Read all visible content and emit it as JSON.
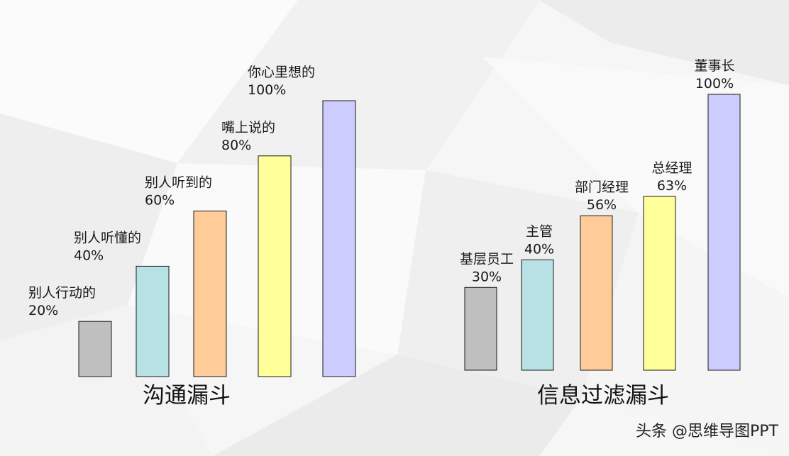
{
  "chart_data": [
    {
      "type": "bar",
      "title": "沟通漏斗",
      "categories": [
        "别人行动的",
        "别人听懂的",
        "别人听到的",
        "嘴上说的",
        "你心里想的"
      ],
      "values": [
        20,
        40,
        60,
        80,
        100
      ],
      "value_labels": [
        "20%",
        "40%",
        "60%",
        "80%",
        "100%"
      ],
      "colors": [
        "#bfbfbf",
        "#b7e1e4",
        "#ffcc99",
        "#ffff99",
        "#ccccff"
      ],
      "ylim": [
        0,
        100
      ],
      "grid": false,
      "legend": "none"
    },
    {
      "type": "bar",
      "title": "信息过滤漏斗",
      "categories": [
        "基层员工",
        "主管",
        "部门经理",
        "总经理",
        "董事长"
      ],
      "values": [
        30,
        40,
        56,
        63,
        100
      ],
      "value_labels": [
        "30%",
        "40%",
        "56%",
        "63%",
        "100%"
      ],
      "colors": [
        "#bfbfbf",
        "#b7e1e4",
        "#ffcc99",
        "#ffff99",
        "#ccccff"
      ],
      "ylim": [
        0,
        100
      ],
      "grid": false,
      "legend": "none"
    }
  ],
  "watermark": "头条 @思维导图PPT"
}
